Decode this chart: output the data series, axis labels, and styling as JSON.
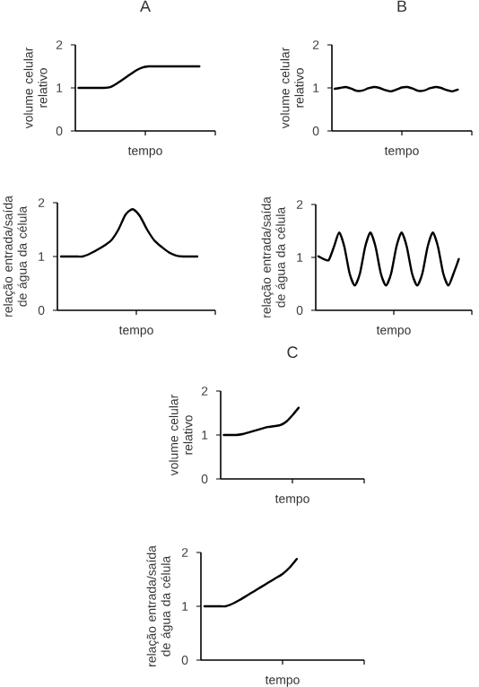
{
  "chart_data": [
    {
      "type": "line",
      "title": "A",
      "xlabel": "tempo",
      "ylabel": "volume celular relativo",
      "categories": [
        null,
        null,
        null,
        null,
        null,
        null,
        null,
        null,
        null,
        null,
        null,
        null,
        null,
        null,
        null,
        null,
        null,
        null,
        null,
        null,
        null,
        null
      ],
      "values": [
        1,
        1,
        1,
        1,
        1,
        1.02,
        1.1,
        1.2,
        1.3,
        1.4,
        1.47,
        1.5,
        1.5,
        1.5,
        1.5,
        1.5,
        1.5,
        1.5,
        1.5,
        1.5,
        null,
        null
      ],
      "color": "#000000",
      "ylim": [
        0,
        2
      ],
      "yticks": [
        0,
        1,
        2
      ],
      "tick_labels": "y"
    },
    {
      "type": "line",
      "title": "B",
      "xlabel": "tempo",
      "ylabel": "volume celular relativo",
      "categories": [
        null,
        null,
        null,
        null,
        null,
        null,
        null,
        null,
        null,
        null,
        null,
        null,
        null,
        null,
        null,
        null,
        null,
        null,
        null,
        null,
        null,
        null,
        null,
        null,
        null
      ],
      "values": [
        0.98,
        1.0,
        1.02,
        0.98,
        0.93,
        0.94,
        0.99,
        1.02,
        1.0,
        0.95,
        0.92,
        0.96,
        1.01,
        1.02,
        0.98,
        0.93,
        0.94,
        0.99,
        1.02,
        1.0,
        0.95,
        0.92,
        0.96,
        null,
        null
      ],
      "color": "#000000",
      "ylim": [
        0,
        2
      ],
      "yticks": [
        0,
        1,
        2
      ],
      "tick_labels": "y"
    },
    {
      "type": "line",
      "xlabel": "tempo",
      "ylabel": "relação entrada/saída de água da célula",
      "categories": [
        null,
        null,
        null,
        null,
        null,
        null,
        null,
        null,
        null,
        null,
        null,
        null,
        null,
        null,
        null,
        null,
        null,
        null,
        null,
        null,
        null,
        null
      ],
      "values": [
        1,
        1,
        1,
        1,
        1.05,
        1.12,
        1.2,
        1.3,
        1.5,
        1.78,
        1.88,
        1.75,
        1.5,
        1.3,
        1.18,
        1.08,
        1.02,
        1,
        1,
        1,
        null,
        null
      ],
      "color": "#000000",
      "ylim": [
        0,
        2
      ],
      "yticks": [
        0,
        1,
        2
      ],
      "tick_labels": "y"
    },
    {
      "type": "line",
      "xlabel": "tempo",
      "ylabel": "relação entrada/saída de água da célula",
      "categories": [
        null,
        null,
        null,
        null,
        null,
        null,
        null,
        null,
        null,
        null,
        null,
        null,
        null,
        null,
        null,
        null,
        null,
        null,
        null,
        null,
        null,
        null,
        null,
        null,
        null,
        null,
        null,
        null,
        null,
        null
      ],
      "values": [
        1.02,
        0.97,
        0.95,
        1.2,
        1.47,
        1.2,
        0.7,
        0.47,
        0.7,
        1.2,
        1.47,
        1.2,
        0.7,
        0.47,
        0.7,
        1.2,
        1.47,
        1.2,
        0.7,
        0.47,
        0.7,
        1.2,
        1.47,
        1.2,
        0.7,
        0.47,
        0.7,
        0.97,
        null,
        null
      ],
      "color": "#000000",
      "ylim": [
        0,
        2
      ],
      "yticks": [
        0,
        1,
        2
      ],
      "tick_labels": "y"
    },
    {
      "type": "line",
      "title": "C",
      "xlabel": "tempo",
      "ylabel": "volume celular relativo",
      "categories": [
        null,
        null,
        null,
        null,
        null,
        null,
        null,
        null,
        null,
        null,
        null,
        null,
        null,
        null,
        null,
        null,
        null,
        null,
        null,
        null,
        null,
        null,
        null
      ],
      "values": [
        1,
        1,
        1,
        1.02,
        1.06,
        1.1,
        1.14,
        1.18,
        1.2,
        1.22,
        1.3,
        1.45,
        1.62,
        null,
        null,
        null,
        null,
        null,
        null,
        null,
        null,
        null,
        null
      ],
      "color": "#000000",
      "ylim": [
        0,
        2
      ],
      "yticks": [
        0,
        1,
        2
      ],
      "tick_labels": "y"
    },
    {
      "type": "line",
      "xlabel": "tempo",
      "ylabel": "relação entrada/saída de água da célula",
      "categories": [
        null,
        null,
        null,
        null,
        null,
        null,
        null,
        null,
        null,
        null,
        null,
        null,
        null,
        null,
        null,
        null,
        null,
        null,
        null,
        null,
        null,
        null,
        null
      ],
      "values": [
        1,
        1,
        1,
        1,
        1.05,
        1.12,
        1.2,
        1.28,
        1.36,
        1.44,
        1.52,
        1.6,
        1.72,
        1.88,
        null,
        null,
        null,
        null,
        null,
        null,
        null,
        null,
        null
      ],
      "color": "#000000",
      "ylim": [
        0,
        2
      ],
      "yticks": [
        0,
        1,
        2
      ],
      "tick_labels": "y"
    }
  ]
}
